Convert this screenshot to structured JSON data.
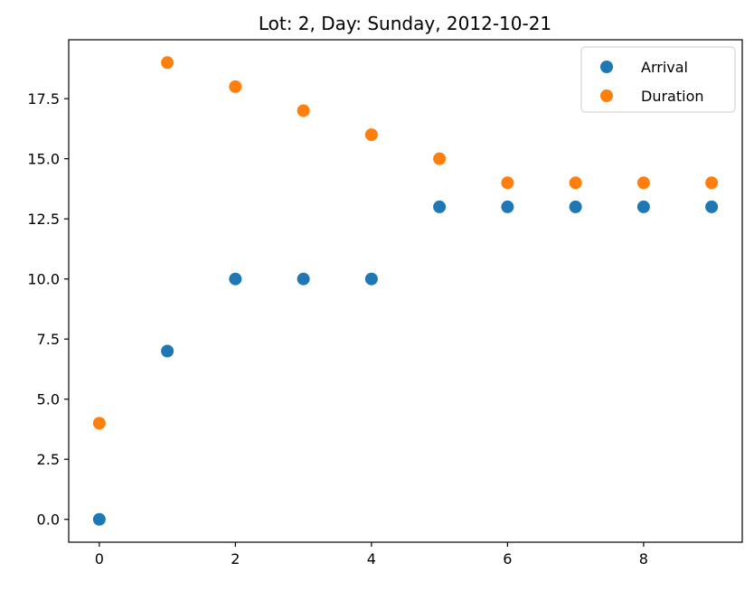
{
  "chart_data": {
    "type": "scatter",
    "title": "Lot: 2, Day: Sunday, 2012-10-21",
    "xlabel": "",
    "ylabel": "",
    "xlim": [
      -0.45,
      9.45
    ],
    "ylim": [
      -0.95,
      19.95
    ],
    "xticks": [
      0,
      2,
      4,
      6,
      8
    ],
    "xtick_labels": [
      "0",
      "2",
      "4",
      "6",
      "8"
    ],
    "yticks": [
      0.0,
      2.5,
      5.0,
      7.5,
      10.0,
      12.5,
      15.0,
      17.5
    ],
    "ytick_labels": [
      "0.0",
      "2.5",
      "5.0",
      "7.5",
      "10.0",
      "12.5",
      "15.0",
      "17.5"
    ],
    "grid": false,
    "legend_position": "top-right",
    "series": [
      {
        "name": "Arrival",
        "color": "#1f77b4",
        "x": [
          0,
          1,
          2,
          3,
          4,
          5,
          6,
          7,
          8,
          9
        ],
        "y": [
          0,
          7,
          10,
          10,
          10,
          13,
          13,
          13,
          13,
          13
        ]
      },
      {
        "name": "Duration",
        "color": "#ff7f0e",
        "x": [
          0,
          1,
          2,
          3,
          4,
          5,
          6,
          7,
          8,
          9
        ],
        "y": [
          4,
          19,
          18,
          17,
          16,
          15,
          14,
          14,
          14,
          14
        ]
      }
    ]
  }
}
